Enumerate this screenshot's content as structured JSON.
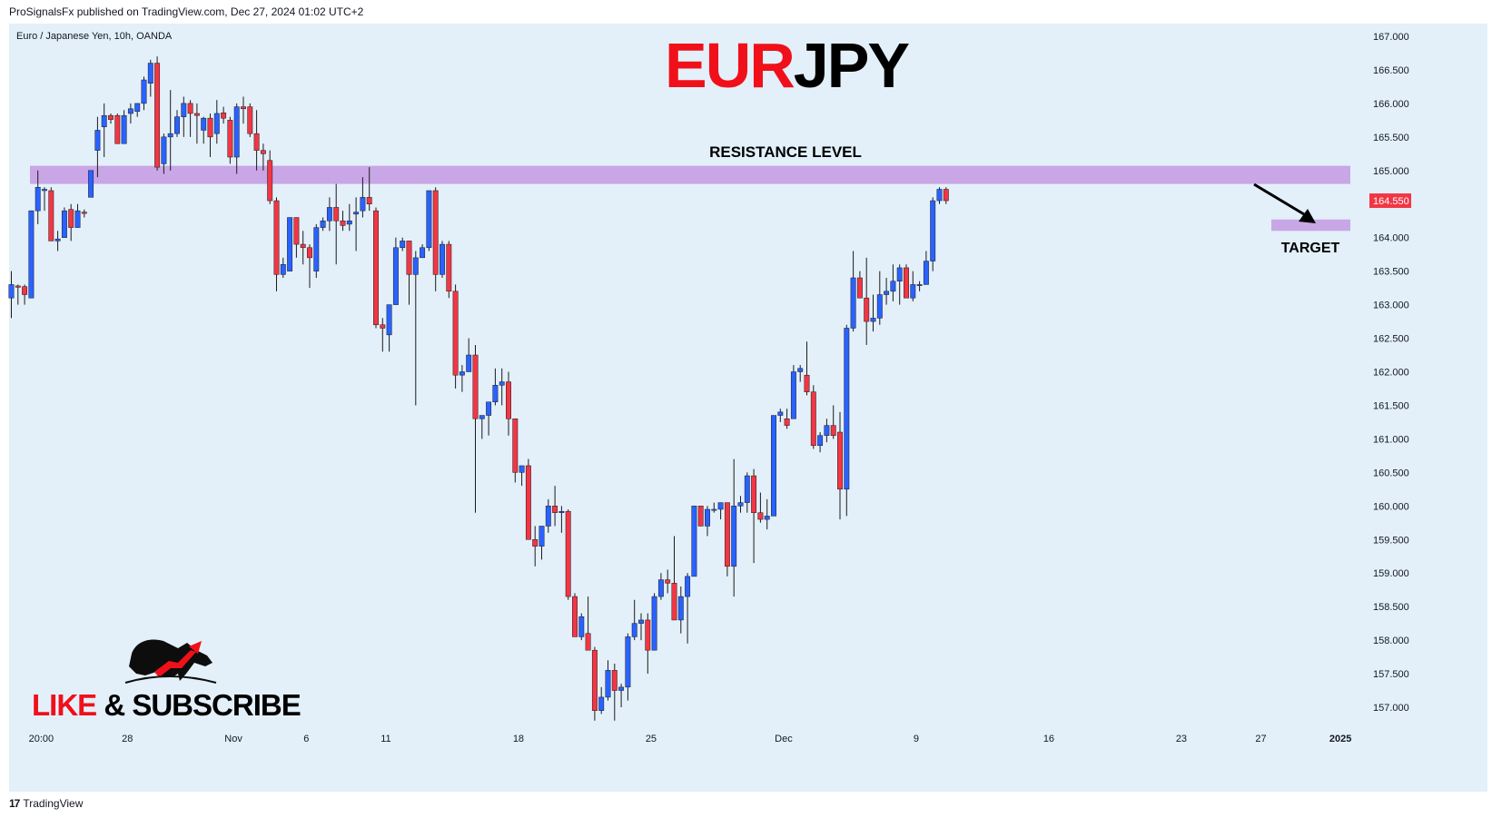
{
  "header": {
    "published": "ProSignalsFx published on TradingView.com, Dec 27, 2024 01:02 UTC+2"
  },
  "symbol_info": "Euro / Japanese Yen, 10h, OANDA",
  "footer": {
    "logo_glyph": "17",
    "brand": "TradingView"
  },
  "logo": {
    "line1": "LIKE & SUBSCRIBE",
    "icon": "bull-bear-icon"
  },
  "colors": {
    "up": "#2962ff",
    "down": "#f23645",
    "background": "#e3f0fa",
    "zone": "#c9a6e6",
    "title_red": "#f0101a",
    "title_black": "#000000"
  },
  "chart_data": {
    "type": "candlestick",
    "title_part1": "EUR",
    "title_part2": "JPY",
    "ylim": [
      156.7,
      167.2
    ],
    "y_ticks": [
      "167.000",
      "166.500",
      "166.000",
      "165.500",
      "165.000",
      "164.500",
      "164.000",
      "163.500",
      "163.000",
      "162.500",
      "162.000",
      "161.500",
      "161.000",
      "160.500",
      "160.000",
      "159.500",
      "159.000",
      "158.500",
      "158.000",
      "157.500",
      "157.000"
    ],
    "y_tick_values": [
      167.0,
      166.5,
      166.0,
      165.5,
      165.0,
      164.5,
      164.0,
      163.5,
      163.0,
      162.5,
      162.0,
      161.5,
      161.0,
      160.5,
      160.0,
      159.5,
      159.0,
      158.5,
      158.0,
      157.5,
      157.0
    ],
    "x_ticks": [
      {
        "label": "20:00",
        "index": 4.5
      },
      {
        "label": "28",
        "index": 17.5
      },
      {
        "label": "Nov",
        "index": 33.5
      },
      {
        "label": "6",
        "index": 44.5
      },
      {
        "label": "11",
        "index": 56.5
      },
      {
        "label": "18",
        "index": 76.5
      },
      {
        "label": "25",
        "index": 96.5
      },
      {
        "label": "Dec",
        "index": 116.5
      },
      {
        "label": "9",
        "index": 136.5
      },
      {
        "label": "16",
        "index": 156.5
      },
      {
        "label": "23",
        "index": 176.5
      },
      {
        "label": "27",
        "index": 188.5
      },
      {
        "label": "2025",
        "index": 200.5
      }
    ],
    "last_price": "164.550",
    "last_price_value": 164.55,
    "resistance": {
      "label": "RESISTANCE LEVEL",
      "low": 164.8,
      "high": 165.07
    },
    "target": {
      "label": "TARGET",
      "low": 164.1,
      "high": 164.27
    },
    "candles": [
      {
        "o": 163.1,
        "h": 163.5,
        "l": 162.8,
        "c": 163.3
      },
      {
        "o": 163.28,
        "h": 163.3,
        "l": 163.0,
        "c": 163.26
      },
      {
        "o": 163.27,
        "h": 163.3,
        "l": 163.0,
        "c": 163.15
      },
      {
        "o": 163.1,
        "h": 164.4,
        "l": 163.1,
        "c": 164.4
      },
      {
        "o": 164.4,
        "h": 165.0,
        "l": 164.2,
        "c": 164.75
      },
      {
        "o": 164.7,
        "h": 164.75,
        "l": 164.4,
        "c": 164.72
      },
      {
        "o": 164.7,
        "h": 164.75,
        "l": 163.95,
        "c": 163.95
      },
      {
        "o": 163.95,
        "h": 164.1,
        "l": 163.8,
        "c": 163.98
      },
      {
        "o": 164.0,
        "h": 164.45,
        "l": 164.0,
        "c": 164.4
      },
      {
        "o": 164.42,
        "h": 164.5,
        "l": 163.95,
        "c": 164.15
      },
      {
        "o": 164.15,
        "h": 164.5,
        "l": 164.15,
        "c": 164.4
      },
      {
        "o": 164.38,
        "h": 164.42,
        "l": 164.3,
        "c": 164.36
      },
      {
        "o": 164.6,
        "h": 165.0,
        "l": 164.6,
        "c": 165.0
      },
      {
        "o": 165.3,
        "h": 165.8,
        "l": 164.9,
        "c": 165.6
      },
      {
        "o": 165.65,
        "h": 166.0,
        "l": 165.2,
        "c": 165.82
      },
      {
        "o": 165.82,
        "h": 165.85,
        "l": 165.7,
        "c": 165.76
      },
      {
        "o": 165.82,
        "h": 165.85,
        "l": 165.4,
        "c": 165.4
      },
      {
        "o": 165.4,
        "h": 165.9,
        "l": 165.4,
        "c": 165.82
      },
      {
        "o": 165.85,
        "h": 166.0,
        "l": 165.7,
        "c": 165.92
      },
      {
        "o": 165.88,
        "h": 166.0,
        "l": 165.8,
        "c": 166.0
      },
      {
        "o": 166.0,
        "h": 166.4,
        "l": 165.9,
        "c": 166.35
      },
      {
        "o": 166.3,
        "h": 166.65,
        "l": 166.1,
        "c": 166.6
      },
      {
        "o": 166.6,
        "h": 166.7,
        "l": 165.0,
        "c": 165.05
      },
      {
        "o": 165.1,
        "h": 165.55,
        "l": 164.95,
        "c": 165.5
      },
      {
        "o": 165.5,
        "h": 166.2,
        "l": 165.0,
        "c": 165.55
      },
      {
        "o": 165.55,
        "h": 165.9,
        "l": 165.5,
        "c": 165.8
      },
      {
        "o": 165.8,
        "h": 166.1,
        "l": 165.5,
        "c": 166.0
      },
      {
        "o": 166.0,
        "h": 166.05,
        "l": 165.5,
        "c": 165.85
      },
      {
        "o": 165.85,
        "h": 166.0,
        "l": 165.4,
        "c": 165.82
      },
      {
        "o": 165.6,
        "h": 165.8,
        "l": 165.4,
        "c": 165.78
      },
      {
        "o": 165.78,
        "h": 165.85,
        "l": 165.2,
        "c": 165.5
      },
      {
        "o": 165.55,
        "h": 166.05,
        "l": 165.4,
        "c": 165.85
      },
      {
        "o": 165.86,
        "h": 165.95,
        "l": 165.7,
        "c": 165.78
      },
      {
        "o": 165.75,
        "h": 165.8,
        "l": 165.1,
        "c": 165.2
      },
      {
        "o": 165.2,
        "h": 166.0,
        "l": 164.95,
        "c": 165.95
      },
      {
        "o": 165.95,
        "h": 166.1,
        "l": 165.7,
        "c": 165.92
      },
      {
        "o": 165.95,
        "h": 166.0,
        "l": 165.5,
        "c": 165.55
      },
      {
        "o": 165.55,
        "h": 165.9,
        "l": 165.0,
        "c": 165.3
      },
      {
        "o": 165.3,
        "h": 165.4,
        "l": 165.0,
        "c": 165.25
      },
      {
        "o": 165.15,
        "h": 165.3,
        "l": 164.5,
        "c": 164.55
      },
      {
        "o": 164.55,
        "h": 164.6,
        "l": 163.2,
        "c": 163.45
      },
      {
        "o": 163.45,
        "h": 163.7,
        "l": 163.4,
        "c": 163.6
      },
      {
        "o": 163.5,
        "h": 164.3,
        "l": 163.5,
        "c": 164.3
      },
      {
        "o": 164.3,
        "h": 164.3,
        "l": 163.7,
        "c": 163.9
      },
      {
        "o": 163.9,
        "h": 164.1,
        "l": 163.6,
        "c": 163.85
      },
      {
        "o": 163.85,
        "h": 163.9,
        "l": 163.25,
        "c": 163.7
      },
      {
        "o": 163.5,
        "h": 164.2,
        "l": 163.4,
        "c": 164.15
      },
      {
        "o": 164.15,
        "h": 164.3,
        "l": 164.1,
        "c": 164.25
      },
      {
        "o": 164.25,
        "h": 164.6,
        "l": 164.1,
        "c": 164.45
      },
      {
        "o": 164.45,
        "h": 164.8,
        "l": 163.6,
        "c": 164.25
      },
      {
        "o": 164.25,
        "h": 164.4,
        "l": 164.1,
        "c": 164.18
      },
      {
        "o": 164.2,
        "h": 164.5,
        "l": 164.1,
        "c": 164.25
      },
      {
        "o": 164.35,
        "h": 164.6,
        "l": 163.8,
        "c": 164.38
      },
      {
        "o": 164.4,
        "h": 164.9,
        "l": 164.3,
        "c": 164.6
      },
      {
        "o": 164.6,
        "h": 165.05,
        "l": 164.4,
        "c": 164.5
      },
      {
        "o": 164.4,
        "h": 164.45,
        "l": 162.65,
        "c": 162.7
      },
      {
        "o": 162.7,
        "h": 162.8,
        "l": 162.3,
        "c": 162.65
      },
      {
        "o": 162.55,
        "h": 163.0,
        "l": 162.3,
        "c": 163.0
      },
      {
        "o": 163.0,
        "h": 164.0,
        "l": 163.0,
        "c": 163.85
      },
      {
        "o": 163.85,
        "h": 164.0,
        "l": 163.8,
        "c": 163.95
      },
      {
        "o": 163.95,
        "h": 163.95,
        "l": 163.0,
        "c": 163.45
      },
      {
        "o": 163.45,
        "h": 163.8,
        "l": 161.5,
        "c": 163.7
      },
      {
        "o": 163.7,
        "h": 163.9,
        "l": 163.7,
        "c": 163.85
      },
      {
        "o": 163.85,
        "h": 164.7,
        "l": 163.8,
        "c": 164.7
      },
      {
        "o": 164.7,
        "h": 164.75,
        "l": 163.2,
        "c": 163.45
      },
      {
        "o": 163.45,
        "h": 163.95,
        "l": 163.4,
        "c": 163.9
      },
      {
        "o": 163.9,
        "h": 163.95,
        "l": 163.1,
        "c": 163.2
      },
      {
        "o": 163.2,
        "h": 163.3,
        "l": 161.75,
        "c": 161.95
      },
      {
        "o": 161.95,
        "h": 162.1,
        "l": 161.7,
        "c": 162.0
      },
      {
        "o": 162.0,
        "h": 162.5,
        "l": 162.0,
        "c": 162.25
      },
      {
        "o": 162.25,
        "h": 162.4,
        "l": 159.9,
        "c": 161.3
      },
      {
        "o": 161.3,
        "h": 161.35,
        "l": 161.0,
        "c": 161.35
      },
      {
        "o": 161.35,
        "h": 161.5,
        "l": 161.05,
        "c": 161.55
      },
      {
        "o": 161.55,
        "h": 162.05,
        "l": 161.5,
        "c": 161.8
      },
      {
        "o": 161.8,
        "h": 162.05,
        "l": 161.5,
        "c": 161.85
      },
      {
        "o": 161.85,
        "h": 162.0,
        "l": 161.05,
        "c": 161.3
      },
      {
        "o": 161.3,
        "h": 161.3,
        "l": 160.35,
        "c": 160.5
      },
      {
        "o": 160.5,
        "h": 160.6,
        "l": 160.3,
        "c": 160.6
      },
      {
        "o": 160.6,
        "h": 160.7,
        "l": 159.5,
        "c": 159.5
      },
      {
        "o": 159.5,
        "h": 159.7,
        "l": 159.1,
        "c": 159.4
      },
      {
        "o": 159.4,
        "h": 159.7,
        "l": 159.2,
        "c": 159.7
      },
      {
        "o": 159.7,
        "h": 160.1,
        "l": 159.6,
        "c": 160.0
      },
      {
        "o": 160.0,
        "h": 160.3,
        "l": 159.7,
        "c": 159.9
      },
      {
        "o": 159.9,
        "h": 160.0,
        "l": 159.6,
        "c": 159.92
      },
      {
        "o": 159.92,
        "h": 159.95,
        "l": 158.6,
        "c": 158.65
      },
      {
        "o": 158.65,
        "h": 158.7,
        "l": 158.05,
        "c": 158.05
      },
      {
        "o": 158.05,
        "h": 158.4,
        "l": 158.0,
        "c": 158.35
      },
      {
        "o": 158.1,
        "h": 158.65,
        "l": 157.9,
        "c": 157.85
      },
      {
        "o": 157.85,
        "h": 157.9,
        "l": 156.8,
        "c": 156.95
      },
      {
        "o": 156.95,
        "h": 157.3,
        "l": 156.9,
        "c": 157.15
      },
      {
        "o": 157.15,
        "h": 157.7,
        "l": 157.1,
        "c": 157.55
      },
      {
        "o": 157.55,
        "h": 157.65,
        "l": 156.8,
        "c": 157.25
      },
      {
        "o": 157.25,
        "h": 157.35,
        "l": 157.0,
        "c": 157.3
      },
      {
        "o": 157.3,
        "h": 158.1,
        "l": 157.1,
        "c": 158.05
      },
      {
        "o": 158.05,
        "h": 158.6,
        "l": 158.0,
        "c": 158.25
      },
      {
        "o": 158.25,
        "h": 158.4,
        "l": 158.0,
        "c": 158.3
      },
      {
        "o": 158.3,
        "h": 158.4,
        "l": 157.5,
        "c": 157.85
      },
      {
        "o": 157.85,
        "h": 158.7,
        "l": 157.85,
        "c": 158.65
      },
      {
        "o": 158.65,
        "h": 159.0,
        "l": 158.6,
        "c": 158.9
      },
      {
        "o": 158.9,
        "h": 159.05,
        "l": 158.7,
        "c": 158.85
      },
      {
        "o": 158.85,
        "h": 159.55,
        "l": 158.3,
        "c": 158.3
      },
      {
        "o": 158.3,
        "h": 158.8,
        "l": 158.1,
        "c": 158.65
      },
      {
        "o": 158.65,
        "h": 159.0,
        "l": 157.95,
        "c": 158.95
      },
      {
        "o": 158.95,
        "h": 160.0,
        "l": 158.95,
        "c": 160.0
      },
      {
        "o": 160.0,
        "h": 160.0,
        "l": 159.7,
        "c": 159.7
      },
      {
        "o": 159.7,
        "h": 160.0,
        "l": 159.55,
        "c": 159.95
      },
      {
        "o": 159.95,
        "h": 160.05,
        "l": 159.9,
        "c": 159.95
      },
      {
        "o": 159.95,
        "h": 160.05,
        "l": 159.8,
        "c": 160.05
      },
      {
        "o": 160.05,
        "h": 160.05,
        "l": 158.95,
        "c": 159.1
      },
      {
        "o": 159.1,
        "h": 160.7,
        "l": 158.65,
        "c": 160.0
      },
      {
        "o": 160.0,
        "h": 160.15,
        "l": 159.9,
        "c": 160.05
      },
      {
        "o": 160.05,
        "h": 160.5,
        "l": 159.9,
        "c": 160.45
      },
      {
        "o": 160.45,
        "h": 160.55,
        "l": 159.15,
        "c": 159.9
      },
      {
        "o": 159.9,
        "h": 160.2,
        "l": 159.75,
        "c": 159.8
      },
      {
        "o": 159.8,
        "h": 160.1,
        "l": 159.65,
        "c": 159.85
      },
      {
        "o": 159.85,
        "h": 161.35,
        "l": 159.85,
        "c": 161.35
      },
      {
        "o": 161.35,
        "h": 161.45,
        "l": 161.25,
        "c": 161.4
      },
      {
        "o": 161.3,
        "h": 161.45,
        "l": 161.15,
        "c": 161.2
      },
      {
        "o": 161.3,
        "h": 162.1,
        "l": 161.3,
        "c": 162.0
      },
      {
        "o": 162.0,
        "h": 162.1,
        "l": 161.85,
        "c": 162.05
      },
      {
        "o": 161.95,
        "h": 162.45,
        "l": 161.65,
        "c": 161.7
      },
      {
        "o": 161.7,
        "h": 161.8,
        "l": 160.85,
        "c": 160.9
      },
      {
        "o": 160.9,
        "h": 161.1,
        "l": 160.8,
        "c": 161.05
      },
      {
        "o": 161.05,
        "h": 161.3,
        "l": 160.95,
        "c": 161.2
      },
      {
        "o": 161.2,
        "h": 161.5,
        "l": 161.0,
        "c": 161.05
      },
      {
        "o": 161.1,
        "h": 161.4,
        "l": 159.8,
        "c": 160.25
      },
      {
        "o": 160.25,
        "h": 162.7,
        "l": 159.85,
        "c": 162.65
      },
      {
        "o": 162.65,
        "h": 163.8,
        "l": 162.6,
        "c": 163.4
      },
      {
        "o": 163.4,
        "h": 163.5,
        "l": 163.1,
        "c": 163.1
      },
      {
        "o": 163.1,
        "h": 163.7,
        "l": 162.4,
        "c": 162.75
      },
      {
        "o": 162.75,
        "h": 163.15,
        "l": 162.6,
        "c": 162.8
      },
      {
        "o": 162.8,
        "h": 163.5,
        "l": 162.7,
        "c": 163.15
      },
      {
        "o": 163.15,
        "h": 163.4,
        "l": 163.0,
        "c": 163.2
      },
      {
        "o": 163.2,
        "h": 163.6,
        "l": 163.05,
        "c": 163.35
      },
      {
        "o": 163.35,
        "h": 163.6,
        "l": 163.0,
        "c": 163.55
      },
      {
        "o": 163.55,
        "h": 163.6,
        "l": 163.15,
        "c": 163.1
      },
      {
        "o": 163.1,
        "h": 163.5,
        "l": 163.05,
        "c": 163.3
      },
      {
        "o": 163.3,
        "h": 163.35,
        "l": 163.2,
        "c": 163.3
      },
      {
        "o": 163.3,
        "h": 163.8,
        "l": 163.3,
        "c": 163.65
      },
      {
        "o": 163.65,
        "h": 164.6,
        "l": 163.5,
        "c": 164.55
      },
      {
        "o": 164.55,
        "h": 164.75,
        "l": 164.5,
        "c": 164.72
      },
      {
        "o": 164.72,
        "h": 164.75,
        "l": 164.5,
        "c": 164.55
      }
    ]
  }
}
